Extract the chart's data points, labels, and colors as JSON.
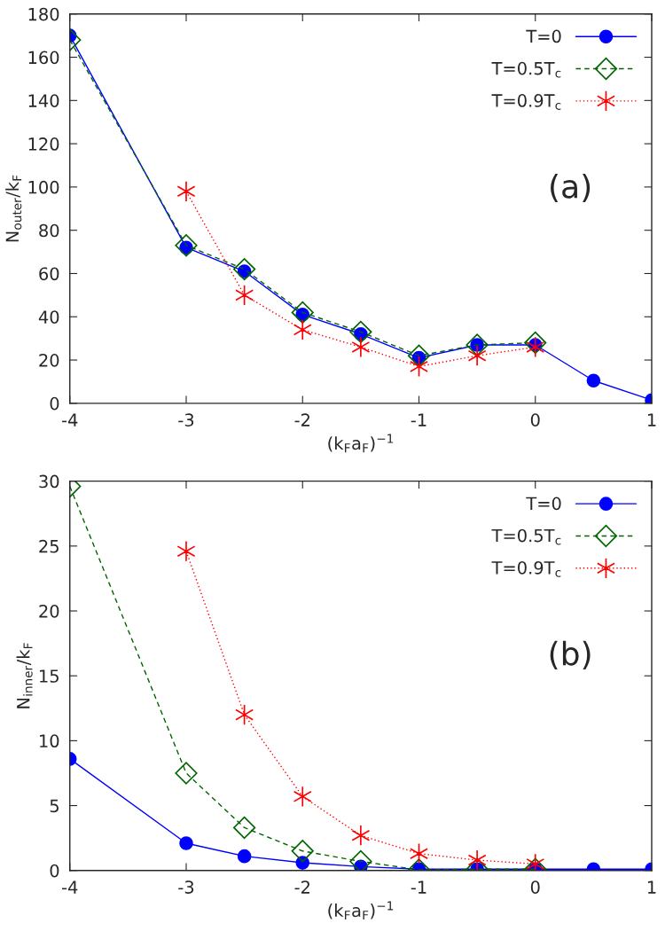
{
  "chart_data": [
    {
      "type": "line",
      "xlabel": "(k$_{F}$a$_{F}$)$^{−1}$",
      "ylabel": "N$_{outer}$/k$_{F}$",
      "annotations": [
        "(a)"
      ],
      "xlim": [
        -4,
        1
      ],
      "xticks": [
        -4,
        -3,
        -2,
        -1,
        0,
        1
      ],
      "ylim": [
        0,
        180
      ],
      "yticks": [
        0,
        20,
        40,
        60,
        80,
        100,
        120,
        140,
        160,
        180
      ],
      "grid": false,
      "legend": "top right",
      "series": [
        {
          "name": "T=0",
          "color": "#0000ff",
          "marker": "circle",
          "line_style": "solid",
          "x": [
            -4,
            -3,
            -2.5,
            -2,
            -1.5,
            -1,
            -0.5,
            0,
            0.5,
            1
          ],
          "values": [
            170,
            72,
            61,
            41,
            32,
            21,
            27,
            27,
            10.5,
            1.5
          ]
        },
        {
          "name": "T=0.5T$_{c}$",
          "color": "#006400",
          "marker": "diamond",
          "line_style": "dashed",
          "x": [
            -4,
            -3,
            -2.5,
            -2,
            -1.5,
            -1,
            -0.5,
            0
          ],
          "values": [
            168,
            73,
            62,
            42,
            33,
            22,
            27,
            28
          ]
        },
        {
          "name": "T=0.9T$_{c}$",
          "color": "#ff0000",
          "marker": "cross",
          "line_style": "dotted",
          "x": [
            -3,
            -2.5,
            -2,
            -1.5,
            -1,
            -0.5,
            0
          ],
          "values": [
            98,
            50,
            34,
            26,
            17,
            22,
            26
          ]
        }
      ]
    },
    {
      "type": "line",
      "xlabel": "(k$_{F}$a$_{F}$)$^{−1}$",
      "ylabel": "N$_{inner}$/k$_{F}$",
      "annotations": [
        "(b)"
      ],
      "xlim": [
        -4,
        1
      ],
      "xticks": [
        -4,
        -3,
        -2,
        -1,
        0,
        1
      ],
      "ylim": [
        0,
        30
      ],
      "yticks": [
        0,
        5,
        10,
        15,
        20,
        25,
        30
      ],
      "grid": false,
      "legend": "top right",
      "series": [
        {
          "name": "T=0",
          "color": "#0000ff",
          "marker": "circle",
          "line_style": "solid",
          "x": [
            -4,
            -3,
            -2.5,
            -2,
            -1.5,
            -1,
            -0.5,
            0,
            0.5,
            1
          ],
          "values": [
            8.6,
            2.1,
            1.1,
            0.6,
            0.3,
            0.1,
            0.1,
            0.1,
            0.1,
            0.1
          ]
        },
        {
          "name": "T=0.5T$_{c}$",
          "color": "#006400",
          "marker": "diamond",
          "line_style": "dashed",
          "x": [
            -4,
            -3,
            -2.5,
            -2,
            -1.5,
            -1,
            -0.5,
            0
          ],
          "values": [
            29.6,
            7.5,
            3.3,
            1.5,
            0.7,
            0.05,
            0.1,
            0.1
          ]
        },
        {
          "name": "T=0.9T$_{c}$",
          "color": "#ff0000",
          "marker": "cross",
          "line_style": "dotted",
          "x": [
            -3,
            -2.5,
            -2,
            -1.5,
            -1,
            -0.5,
            0
          ],
          "values": [
            24.6,
            12,
            5.7,
            2.7,
            1.3,
            0.8,
            0.5
          ]
        }
      ]
    }
  ]
}
